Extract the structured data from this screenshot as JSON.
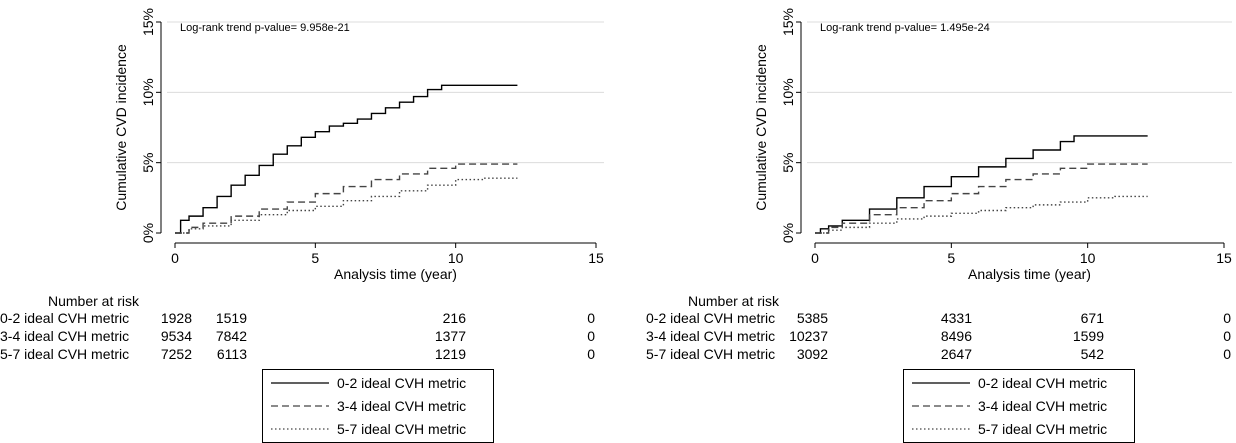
{
  "chart_data": [
    {
      "type": "line",
      "annotation": "Log-rank trend p-value= 9.958e-21",
      "xlabel": "Analysis time (year)",
      "ylabel": "Cumulative CVD incidence",
      "xlim": [
        0,
        15
      ],
      "ylim": [
        0,
        15
      ],
      "x_ticks": [
        0,
        5,
        10,
        15
      ],
      "y_ticks": [
        0,
        5,
        10,
        15
      ],
      "y_tick_labels": [
        "0%",
        "5%",
        "10%",
        "15%"
      ],
      "grid": true,
      "series": [
        {
          "name": "0-2 ideal CVH metric",
          "style": "solid",
          "x": [
            0,
            0.2,
            0.5,
            1,
            1.5,
            2,
            2.5,
            3,
            3.5,
            4,
            4.5,
            5,
            5.5,
            6,
            6.5,
            7,
            7.5,
            8,
            8.5,
            9,
            9.5,
            10,
            11,
            12.2
          ],
          "y": [
            0,
            0.9,
            1.2,
            1.8,
            2.6,
            3.4,
            4.1,
            4.8,
            5.6,
            6.2,
            6.8,
            7.2,
            7.6,
            7.8,
            8.1,
            8.5,
            8.9,
            9.3,
            9.7,
            10.2,
            10.5,
            10.5,
            10.5,
            10.5
          ]
        },
        {
          "name": "3-4 ideal CVH metric",
          "style": "dashed",
          "x": [
            0,
            0.5,
            1,
            2,
            3,
            4,
            5,
            6,
            7,
            8,
            9,
            10,
            11,
            12.2
          ],
          "y": [
            0,
            0.4,
            0.7,
            1.2,
            1.7,
            2.2,
            2.8,
            3.3,
            3.8,
            4.2,
            4.6,
            4.9,
            4.9,
            4.9
          ]
        },
        {
          "name": "5-7 ideal CVH metric",
          "style": "dotted",
          "x": [
            0,
            0.5,
            1,
            2,
            3,
            4,
            5,
            6,
            7,
            8,
            9,
            10,
            11,
            12.2
          ],
          "y": [
            0,
            0.3,
            0.5,
            0.9,
            1.3,
            1.6,
            1.9,
            2.3,
            2.6,
            3.0,
            3.4,
            3.8,
            3.9,
            3.9
          ]
        }
      ],
      "risk_table": {
        "title": "Number at risk",
        "timepoints": [
          0,
          5,
          10,
          15
        ],
        "rows": [
          {
            "label": "0-2 ideal CVH metric",
            "values": [
              "1928",
              "1519",
              "216",
              "0"
            ]
          },
          {
            "label": "3-4 ideal CVH metric",
            "values": [
              "9534",
              "7842",
              "1377",
              "0"
            ]
          },
          {
            "label": "5-7 ideal CVH metric",
            "values": [
              "7252",
              "6113",
              "1219",
              "0"
            ]
          }
        ]
      },
      "legend": [
        "0-2 ideal CVH metric",
        "3-4 ideal CVH metric",
        "5-7 ideal CVH metric"
      ]
    },
    {
      "type": "line",
      "annotation": "Log-rank trend p-value= 1.495e-24",
      "xlabel": "Analysis time (year)",
      "ylabel": "Cumulative CVD incidence",
      "xlim": [
        0,
        15
      ],
      "ylim": [
        0,
        15
      ],
      "x_ticks": [
        0,
        5,
        10,
        15
      ],
      "y_ticks": [
        0,
        5,
        10,
        15
      ],
      "y_tick_labels": [
        "0%",
        "5%",
        "10%",
        "15%"
      ],
      "grid": true,
      "series": [
        {
          "name": "0-2 ideal CVH metric",
          "style": "solid",
          "x": [
            0,
            0.2,
            0.5,
            1,
            2,
            3,
            4,
            5,
            6,
            7,
            8,
            9,
            9.5,
            10,
            11,
            12.2
          ],
          "y": [
            0,
            0.3,
            0.5,
            0.9,
            1.7,
            2.5,
            3.3,
            4.0,
            4.7,
            5.3,
            5.9,
            6.5,
            6.9,
            6.9,
            6.9,
            6.9
          ]
        },
        {
          "name": "3-4 ideal CVH metric",
          "style": "dashed",
          "x": [
            0,
            0.5,
            1,
            2,
            3,
            4,
            5,
            6,
            7,
            8,
            9,
            10,
            11,
            12.2
          ],
          "y": [
            0,
            0.4,
            0.7,
            1.3,
            1.8,
            2.3,
            2.8,
            3.3,
            3.8,
            4.2,
            4.6,
            4.9,
            4.9,
            4.9
          ]
        },
        {
          "name": "5-7 ideal CVH metric",
          "style": "dotted",
          "x": [
            0,
            0.5,
            1,
            2,
            3,
            4,
            5,
            6,
            7,
            8,
            9,
            10,
            11,
            12.2
          ],
          "y": [
            0,
            0.2,
            0.4,
            0.7,
            1.0,
            1.2,
            1.4,
            1.6,
            1.8,
            2.0,
            2.2,
            2.5,
            2.6,
            2.6
          ]
        }
      ],
      "risk_table": {
        "title": "Number at risk",
        "timepoints": [
          0,
          5,
          10,
          15
        ],
        "rows": [
          {
            "label": "0-2 ideal CVH metric",
            "values": [
              "5385",
              "4331",
              "671",
              "0"
            ]
          },
          {
            "label": "3-4 ideal CVH metric",
            "values": [
              "10237",
              "8496",
              "1599",
              "0"
            ]
          },
          {
            "label": "5-7 ideal CVH metric",
            "values": [
              "3092",
              "2647",
              "542",
              "0"
            ]
          }
        ]
      },
      "legend": [
        "0-2 ideal CVH metric",
        "3-4 ideal CVH metric",
        "5-7 ideal CVH metric"
      ]
    }
  ],
  "styles": {
    "line_color": "#000000",
    "dashed_color": "#444444",
    "dotted_color": "#444444",
    "grid_color": "#dcdcdc"
  }
}
